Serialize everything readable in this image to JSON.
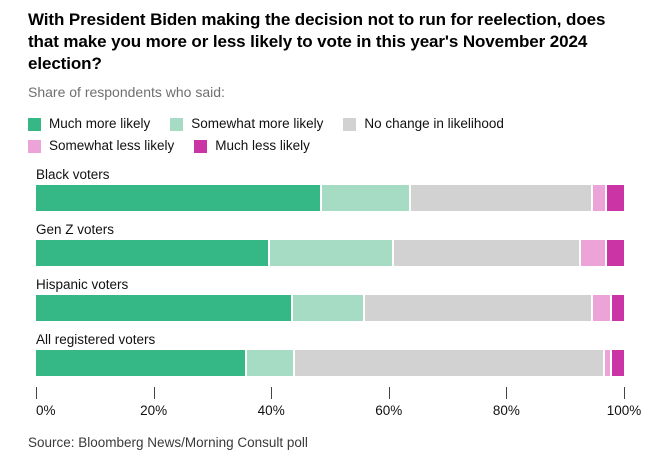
{
  "title": "With President Biden making the decision not to run for reelection, does that make you more or less likely to vote in this year's November 2024 election?",
  "subtitle": "Share of respondents who said:",
  "source": "Source: Bloomberg News/Morning Consult poll",
  "colors": {
    "much_more": "#36b786",
    "somewhat_more": "#a5dcc3",
    "no_change": "#d2d2d2",
    "somewhat_less": "#eca3d7",
    "much_less": "#ca34a4",
    "tick": "#444444"
  },
  "chart_data": {
    "type": "bar",
    "stacked": true,
    "orientation": "horizontal",
    "title": "With President Biden making the decision not to run for reelection, does that make you more or less likely to vote in this year's November 2024 election?",
    "subtitle": "Share of respondents who said:",
    "categories": [
      "Black voters",
      "Gen Z voters",
      "Hispanic voters",
      "All registered voters"
    ],
    "series": [
      {
        "name": "Much more likely",
        "color": "#36b786",
        "values": [
          49,
          40,
          44,
          36
        ]
      },
      {
        "name": "Somewhat more likely",
        "color": "#a5dcc3",
        "values": [
          15,
          21,
          12,
          8
        ]
      },
      {
        "name": "No change in likelihood",
        "color": "#d2d2d2",
        "values": [
          31,
          32,
          39,
          53
        ]
      },
      {
        "name": "Somewhat less likely",
        "color": "#eca3d7",
        "values": [
          2,
          4,
          3,
          1
        ]
      },
      {
        "name": "Much less likely",
        "color": "#ca34a4",
        "values": [
          3,
          3,
          2,
          2
        ]
      }
    ],
    "x_ticks": [
      "0%",
      "20%",
      "40%",
      "60%",
      "80%",
      "100%"
    ],
    "xlim": [
      0,
      100
    ],
    "xlabel": "",
    "ylabel": "",
    "grid": false,
    "legend_position": "top"
  }
}
